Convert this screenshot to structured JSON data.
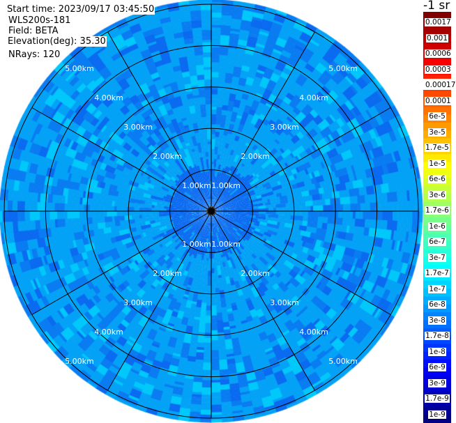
{
  "info": {
    "start_time": "Start time: 2023/09/17 03:45:50",
    "instrument": "WLS200s-181",
    "field": "Field: BETA",
    "elevation": "Elevation(deg): 35.30",
    "nrays": "NRays: 120"
  },
  "chart_data": {
    "type": "heatmap",
    "projection": "polar PPI",
    "field": "BETA",
    "nrays": 120,
    "elevation_deg": 35.3,
    "range_rings_km": [
      1,
      2,
      3,
      4,
      5
    ],
    "ring_labels": [
      "1.00km",
      "2.00km",
      "3.00km",
      "4.00km",
      "5.00km"
    ],
    "azimuth_spoke_step_deg": 30,
    "grid": true,
    "colorbar": {
      "title": "-1 sr",
      "placement": "right",
      "scale": "log",
      "range": [
        1e-09,
        0.0017
      ],
      "ticks": [
        "0.0017",
        "0.001",
        "0.0006",
        "0.0003",
        "0.00017",
        "0.0001",
        "6e-5",
        "3e-5",
        "1.7e-5",
        "1e-5",
        "6e-6",
        "3e-6",
        "1.7e-6",
        "1e-6",
        "6e-7",
        "3e-7",
        "1.7e-7",
        "1e-7",
        "6e-8",
        "3e-8",
        "1.7e-8",
        "1e-8",
        "6e-9",
        "3e-9",
        "1.7e-9",
        "1e-9"
      ]
    },
    "value_levels": {
      "inside_1km": "approx 3e-8 to 6e-8",
      "beyond_1km": "approx 6e-8 to 1.7e-7"
    },
    "colors": {
      "inner": "#0a6af0",
      "main": "#04a2f6",
      "dark": "#0a7cf2",
      "cyan": "#00c8fb",
      "grid": "#000000",
      "ring_label": "#ffffff"
    }
  }
}
